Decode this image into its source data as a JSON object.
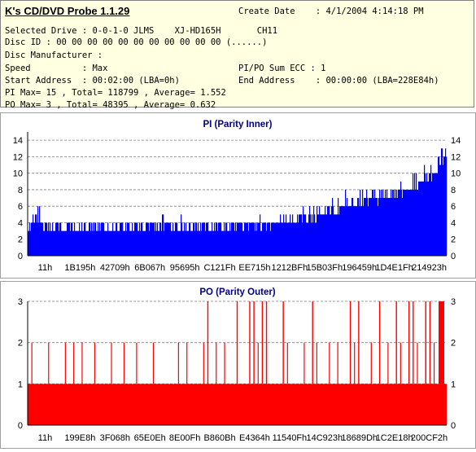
{
  "header": {
    "title": "K's CD/DVD Probe 1.1.29",
    "create_date": "Create Date    : 4/1/2004 4:14:18 PM",
    "lines": [
      "Selected Drive : 0-0-1-0 JLMS    XJ-HD165H       CH11",
      "Disc ID : 00 00 00 00 00 00 00 00 00 00 00 (......)",
      "Disc Manufacturer :",
      "Speed          : Max",
      "Start Address  : 00:02:00 (LBA=0h)",
      "PI Max= 15 , Total= 118799 , Average= 1.552",
      "PO Max= 3 , Total= 48395 , Average= 0.632"
    ],
    "right_lines": [
      "PI/PO Sum ECC : 1",
      "End Address    : 00:00:00 (LBA=228E84h)"
    ]
  },
  "chart_data": [
    {
      "type": "bar",
      "title": "PI (Parity Inner)",
      "x_tick_labels": [
        "11h",
        "1B195h",
        "42709h",
        "6B067h",
        "95695h",
        "C121Fh",
        "EE715h",
        "1212BFh",
        "15B03Fh",
        "196459h",
        "1D4E1Fh",
        "214923h"
      ],
      "y_ticks": [
        0,
        2,
        4,
        6,
        8,
        10,
        12,
        14
      ],
      "ylim": [
        0,
        15
      ],
      "grid": true,
      "color": "#0000ff",
      "profile_x_fraction": [
        0,
        0.02,
        0.03,
        0.05,
        0.1,
        0.2,
        0.3,
        0.33,
        0.35,
        0.4,
        0.5,
        0.6,
        0.65,
        0.7,
        0.75,
        0.8,
        0.85,
        0.88,
        0.9,
        0.92,
        0.94,
        0.96,
        0.97,
        0.98,
        0.99,
        1.0
      ],
      "profile_base": [
        3,
        4,
        3.5,
        3,
        3,
        3,
        3,
        3.5,
        3,
        3,
        3.2,
        3.5,
        4,
        4.5,
        5.5,
        6,
        6.5,
        7,
        7.5,
        8,
        8.5,
        9,
        9.5,
        10,
        11,
        11
      ],
      "profile_peak": [
        5,
        7,
        6,
        4,
        4,
        4,
        4,
        6.5,
        5,
        4,
        4.5,
        5,
        6,
        6.5,
        7.5,
        8,
        8.5,
        9,
        10,
        10,
        11,
        11.5,
        12,
        13,
        15,
        13
      ]
    },
    {
      "type": "bar",
      "title": "PO (Parity Outer)",
      "x_tick_labels": [
        "11h",
        "199E8h",
        "3F068h",
        "65E0Eh",
        "8E00Fh",
        "B860Bh",
        "E4364h",
        "11540Fh",
        "14C923h",
        "18689Dh",
        "1C2E18h",
        "200CF2h"
      ],
      "y_ticks": [
        0,
        1,
        2,
        3
      ],
      "ylim": [
        0,
        3
      ],
      "grid": true,
      "color": "#ff0000",
      "baseline_value": 1,
      "spikes_2_x_fraction": [
        0.01,
        0.05,
        0.09,
        0.11,
        0.13,
        0.16,
        0.2,
        0.23,
        0.26,
        0.3,
        0.36,
        0.38,
        0.42,
        0.45,
        0.47,
        0.55,
        0.57,
        0.62,
        0.66,
        0.69,
        0.72,
        0.74,
        0.78,
        0.82,
        0.86,
        0.89,
        0.93,
        0.95,
        0.97
      ],
      "spikes_3_x_fraction": [
        0.43,
        0.5,
        0.53,
        0.54,
        0.56,
        0.57,
        0.61,
        0.68,
        0.77,
        0.79,
        0.84,
        0.88,
        0.91,
        0.92,
        0.95,
        0.96,
        0.985,
        0.99
      ]
    }
  ]
}
